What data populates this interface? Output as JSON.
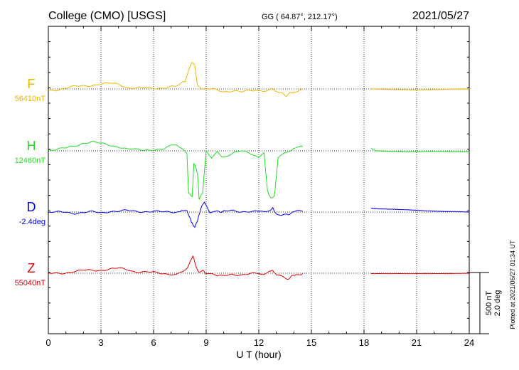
{
  "header": {
    "station": "College (CMO)  [USGS]",
    "coords": "GG ( 64.87°, 212.17°)",
    "date": "2021/05/27"
  },
  "scale": {
    "nt": "500 nT",
    "deg": "2.0 deg"
  },
  "plotted": "Plotted at 2021/06/27 01:34 UT",
  "chart_data": {
    "type": "line",
    "title": "College (CMO)  [USGS]",
    "xlabel": "U T (hour)",
    "ylabel": "",
    "xlim": [
      0,
      24
    ],
    "xticks": [
      "0",
      "3",
      "6",
      "9",
      "12",
      "15",
      "18",
      "21",
      "24"
    ],
    "grid": true,
    "gap_hours": [
      14.5,
      18.4
    ],
    "scale_bar": {
      "nT": 500,
      "deg": 2.0
    },
    "series": [
      {
        "name": "F",
        "baseline_label": "56410nT",
        "color": "#f0b400",
        "x": [
          0,
          0.5,
          1,
          1.5,
          2,
          2.5,
          3,
          3.5,
          4,
          4.5,
          5,
          5.5,
          6,
          6.5,
          7,
          7.4,
          7.8,
          8.0,
          8.2,
          8.35,
          8.5,
          8.7,
          9.0,
          9.5,
          10,
          10.5,
          11,
          11.5,
          12,
          12.5,
          12.8,
          13.2,
          13.6,
          14.0,
          14.5,
          18.4,
          19,
          20,
          21,
          22,
          23,
          24
        ],
        "y": [
          -4,
          -2,
          3,
          7,
          10,
          12,
          15,
          17,
          16,
          5,
          2,
          2,
          3,
          4,
          6,
          12,
          25,
          60,
          85,
          70,
          15,
          3,
          0,
          -2,
          -8,
          -5,
          -10,
          -6,
          -3,
          -5,
          -1,
          -12,
          -20,
          -8,
          0,
          0,
          -1,
          -2,
          -3,
          -2,
          -1,
          0
        ]
      },
      {
        "name": "H",
        "baseline_label": "12460nT",
        "color": "#22dd22",
        "x": [
          0,
          0.5,
          1,
          1.5,
          2,
          2.5,
          3,
          3.5,
          4,
          4.5,
          5,
          5.5,
          6,
          6.5,
          7,
          7.3,
          7.6,
          7.9,
          8.0,
          8.2,
          8.3,
          8.5,
          8.6,
          8.8,
          9.0,
          9.3,
          9.6,
          10,
          10.5,
          11,
          11.5,
          12,
          12.3,
          12.5,
          12.7,
          12.9,
          13.1,
          13.4,
          13.7,
          14.0,
          14.5,
          18.4,
          18.7,
          19.5,
          20.5,
          21.5,
          22.5,
          23.5,
          24
        ],
        "y": [
          3,
          5,
          8,
          15,
          25,
          28,
          22,
          18,
          14,
          5,
          3,
          3,
          5,
          3,
          15,
          20,
          5,
          -10,
          -130,
          -140,
          -40,
          -70,
          -150,
          -130,
          0,
          -20,
          -5,
          -20,
          -10,
          0,
          -5,
          -20,
          -10,
          -130,
          -150,
          -140,
          -20,
          -10,
          0,
          10,
          12,
          8,
          0,
          -2,
          -3,
          -2,
          -2,
          -3,
          -3
        ]
      },
      {
        "name": "D",
        "baseline_label": "-2.4deg",
        "color": "#0000ee",
        "x": [
          0,
          0.5,
          1,
          1.5,
          2,
          2.5,
          3,
          3.5,
          4,
          4.5,
          5,
          5.5,
          6,
          6.5,
          7,
          7.5,
          7.9,
          8.1,
          8.2,
          8.35,
          8.5,
          8.7,
          8.9,
          9.2,
          9.6,
          10,
          10.5,
          11,
          11.5,
          12,
          12.3,
          12.6,
          12.8,
          13.0,
          13.3,
          13.6,
          14.0,
          14.5,
          18.4,
          18.8,
          19.5,
          20.5,
          21.5,
          22.5,
          23.5,
          24
        ],
        "y": [
          -2,
          -1,
          0,
          -3,
          -2,
          0,
          -2,
          3,
          2,
          4,
          3,
          2,
          1,
          0,
          1,
          2,
          5,
          -20,
          -35,
          -45,
          -30,
          10,
          30,
          0,
          2,
          2,
          3,
          2,
          3,
          1,
          2,
          5,
          15,
          -5,
          -12,
          -8,
          0,
          3,
          12,
          10,
          9,
          7,
          4,
          2,
          1,
          0
        ]
      },
      {
        "name": "Z",
        "baseline_label": "55040nT",
        "color": "#dd0000",
        "x": [
          0,
          0.5,
          1,
          1.5,
          2,
          2.5,
          3,
          3.5,
          4,
          4.5,
          5,
          5.5,
          6,
          6.5,
          7,
          7.3,
          7.6,
          7.9,
          8.1,
          8.25,
          8.4,
          8.6,
          8.8,
          9.0,
          9.3,
          9.6,
          10,
          10.5,
          11,
          11.5,
          12,
          12.3,
          12.6,
          12.8,
          13.0,
          13.3,
          13.6,
          14.0,
          14.5,
          18.4,
          19,
          20,
          21,
          22,
          23,
          24
        ],
        "y": [
          -2,
          0,
          2,
          5,
          8,
          10,
          10,
          12,
          15,
          12,
          5,
          3,
          2,
          0,
          -2,
          -5,
          5,
          15,
          40,
          55,
          20,
          0,
          10,
          0,
          -2,
          -5,
          -8,
          -2,
          -5,
          -3,
          -1,
          0,
          5,
          8,
          -5,
          -12,
          -18,
          -8,
          0,
          -1,
          -1,
          -1,
          -1,
          -1,
          -1,
          0
        ]
      }
    ]
  }
}
